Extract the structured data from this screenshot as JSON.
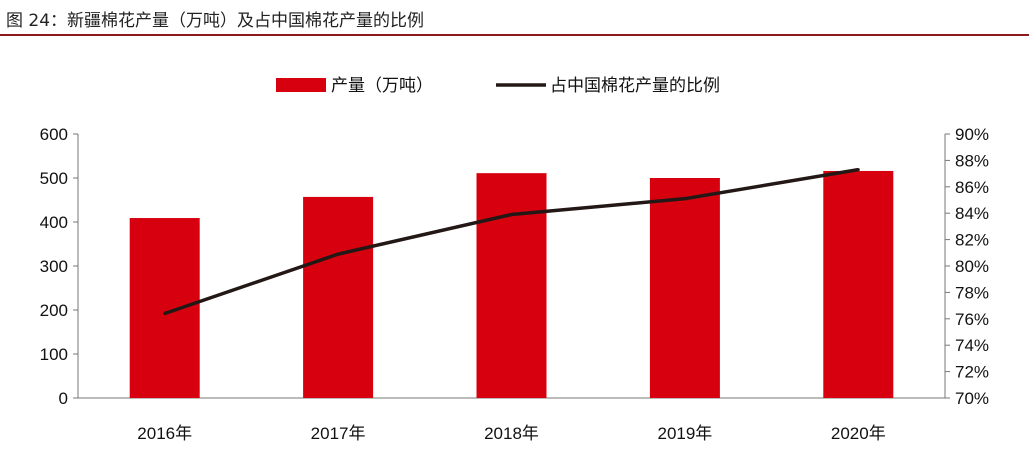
{
  "title": "图 24：新疆棉花产量（万吨）及占中国棉花产量的比例",
  "chart_data": {
    "type": "bar+line",
    "categories": [
      "2016年",
      "2017年",
      "2018年",
      "2019年",
      "2020年"
    ],
    "series": [
      {
        "name": "产量（万吨）",
        "type": "bar",
        "axis": "left",
        "color": "#d7000f",
        "values": [
          409,
          457,
          511,
          500,
          516
        ]
      },
      {
        "name": "占中国棉花产量的比例",
        "type": "line",
        "axis": "right",
        "color": "#231815",
        "values": [
          76.4,
          80.9,
          83.9,
          85.1,
          87.3
        ]
      }
    ],
    "left_axis": {
      "ylim": [
        0,
        600
      ],
      "ticks": [
        "0",
        "100",
        "200",
        "300",
        "400",
        "500",
        "600"
      ]
    },
    "right_axis": {
      "ylim": [
        70,
        90
      ],
      "ticks": [
        "70%",
        "72%",
        "74%",
        "76%",
        "78%",
        "80%",
        "82%",
        "84%",
        "86%",
        "88%",
        "90%"
      ]
    },
    "legend_position": "top",
    "grid": false
  }
}
